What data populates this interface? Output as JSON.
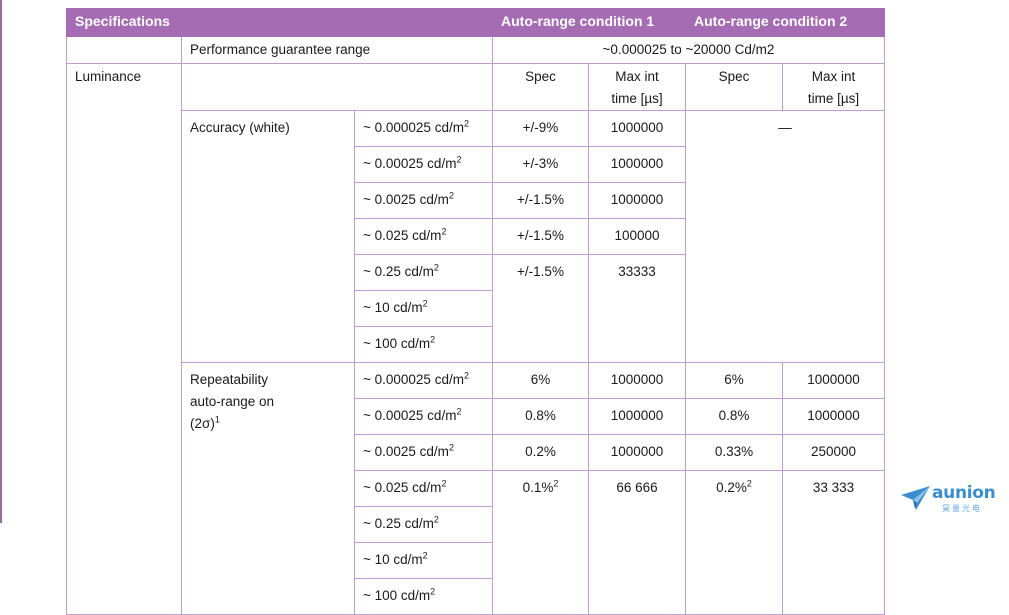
{
  "header": {
    "specifications": "Specifications",
    "condition1": "Auto-range condition 1",
    "condition2": "Auto-range condition 2"
  },
  "guarantee": {
    "label": "Performance guarantee range",
    "value": "~0.000025 to ~20000 Cd/m2"
  },
  "luminance": {
    "label": "Luminance",
    "spec_label": "Spec",
    "maxint_line1": "Max int",
    "maxint_line2": "time [µs]"
  },
  "accuracy": {
    "label": "Accuracy (white)",
    "cond2_dash": "—",
    "rows": [
      {
        "range": "~ 0.000025 cd/m",
        "spec1": "+/-9%",
        "max1": "1000000"
      },
      {
        "range": "~ 0.00025 cd/m",
        "spec1": "+/-3%",
        "max1": "1000000"
      },
      {
        "range": "~ 0.0025 cd/m",
        "spec1": "+/-1.5%",
        "max1": "1000000"
      },
      {
        "range": "~ 0.025 cd/m",
        "spec1": "+/-1.5%",
        "max1": "100000"
      },
      {
        "range": "~ 0.25 cd/m",
        "spec1": "+/-1.5%",
        "max1": "33333"
      },
      {
        "range": "~ 10 cd/m"
      },
      {
        "range": "~ 100 cd/m"
      }
    ]
  },
  "repeatability": {
    "label_line1": "Repeatability",
    "label_line2": "auto-range on",
    "label_line3": "(2σ)",
    "label_note": "1",
    "rows": [
      {
        "range": "~ 0.000025 cd/m",
        "spec1": "6%",
        "max1": "1000000",
        "spec2": "6%",
        "max2": "1000000"
      },
      {
        "range": "~ 0.00025 cd/m",
        "spec1": "0.8%",
        "max1": "1000000",
        "spec2": "0.8%",
        "max2": "1000000"
      },
      {
        "range": "~ 0.0025 cd/m",
        "spec1": "0.2%",
        "max1": "1000000",
        "spec2": "0.33%",
        "max2": "250000"
      },
      {
        "range": "~ 0.025 cd/m",
        "spec1": "0.1%",
        "spec1_note": "2",
        "max1": "66 666",
        "spec2": "0.2%",
        "spec2_note": "2",
        "max2": "33 333"
      },
      {
        "range": "~ 0.25 cd/m"
      },
      {
        "range": "~ 10 cd/m"
      },
      {
        "range": "~ 100 cd/m"
      }
    ]
  },
  "units": {
    "exponent": "2"
  },
  "logo": {
    "name": "aunion",
    "subtitle": "昊量光电"
  }
}
